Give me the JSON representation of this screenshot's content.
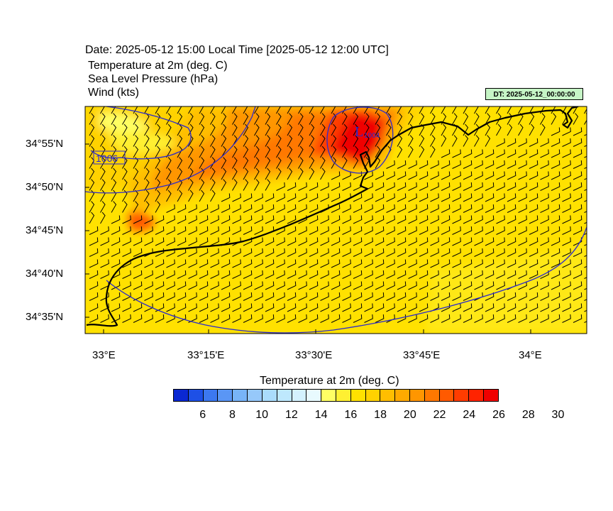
{
  "header": {
    "date_line": "Date: 2025-05-12  15:00 Local Time [2025-05-12  12:00 UTC]",
    "fields": [
      "Temperature at 2m   (deg. C)",
      "Sea Level Pressure   (hPa)",
      "Wind   (kts)"
    ]
  },
  "badge": {
    "text": "DT: 2025-05-12_00:00:00",
    "color": "#c6f5c6"
  },
  "map": {
    "lat_labels": [
      "34°55'N",
      "34°50'N",
      "34°45'N",
      "34°40'N",
      "34°35'N"
    ],
    "lon_labels": [
      "33°E",
      "33°15'E",
      "33°30'E",
      "33°45'E",
      "34°E"
    ],
    "low_label": "L",
    "low_value": "1004",
    "contour_label": "1006",
    "contour_color": "#2a2ad0",
    "coast_color": "#000000"
  },
  "colorbar": {
    "title": "Temperature at 2m  (deg. C)",
    "labels": [
      "6",
      "8",
      "10",
      "12",
      "14",
      "16",
      "18",
      "20",
      "22",
      "24",
      "26",
      "28",
      "30"
    ],
    "colors": [
      "#0a28d2",
      "#1e50e6",
      "#3c78f0",
      "#5a96f5",
      "#78b4f8",
      "#96c8fa",
      "#aadcfc",
      "#bee8fd",
      "#d4f2fe",
      "#e8fafe",
      "#ffff64",
      "#fff032",
      "#ffe100",
      "#ffd200",
      "#ffbe00",
      "#ffaa00",
      "#ff9600",
      "#ff7800",
      "#ff5a00",
      "#ff3c00",
      "#ff2300",
      "#f00000"
    ]
  }
}
